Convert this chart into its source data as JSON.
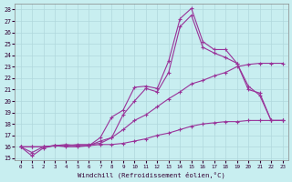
{
  "xlabel": "Windchill (Refroidissement éolien,°C)",
  "bg_color": "#c8eef0",
  "grid_color": "#b0d8dc",
  "line_color": "#993399",
  "xlim": [
    -0.5,
    23.5
  ],
  "ylim": [
    14.8,
    28.5
  ],
  "yticks": [
    15,
    16,
    17,
    18,
    19,
    20,
    21,
    22,
    23,
    24,
    25,
    26,
    27,
    28
  ],
  "xticks": [
    0,
    1,
    2,
    3,
    4,
    5,
    6,
    7,
    8,
    9,
    10,
    11,
    12,
    13,
    14,
    15,
    16,
    17,
    18,
    19,
    20,
    21,
    22,
    23
  ],
  "lines": [
    {
      "x": [
        0,
        1,
        2,
        3,
        4,
        5,
        6,
        7,
        8,
        9,
        10,
        11,
        12,
        13,
        14,
        15,
        16,
        17,
        18,
        19,
        20,
        21,
        22,
        23
      ],
      "y": [
        16.0,
        15.2,
        15.9,
        16.1,
        16.2,
        16.1,
        16.1,
        16.8,
        18.6,
        19.2,
        21.2,
        21.3,
        21.1,
        23.5,
        27.2,
        28.1,
        25.2,
        24.5,
        24.5,
        23.3,
        21.0,
        20.7,
        18.3,
        18.3
      ]
    },
    {
      "x": [
        0,
        1,
        2,
        3,
        4,
        5,
        6,
        7,
        8,
        9,
        10,
        11,
        12,
        13,
        14,
        15,
        16,
        17,
        18,
        19,
        20,
        21,
        22,
        23
      ],
      "y": [
        16.0,
        15.5,
        16.0,
        16.1,
        16.0,
        16.0,
        16.1,
        16.5,
        16.8,
        18.8,
        20.0,
        21.1,
        20.8,
        22.5,
        26.5,
        27.5,
        24.7,
        24.2,
        23.8,
        23.3,
        21.3,
        20.5,
        18.3,
        18.3
      ]
    },
    {
      "x": [
        0,
        1,
        2,
        3,
        4,
        5,
        6,
        7,
        8,
        9,
        10,
        11,
        12,
        13,
        14,
        15,
        16,
        17,
        18,
        19,
        20,
        21,
        22,
        23
      ],
      "y": [
        16.0,
        16.0,
        16.0,
        16.1,
        16.1,
        16.2,
        16.2,
        16.3,
        16.8,
        17.5,
        18.3,
        18.8,
        19.5,
        20.2,
        20.8,
        21.5,
        21.8,
        22.2,
        22.5,
        23.0,
        23.2,
        23.3,
        23.3,
        23.3
      ]
    },
    {
      "x": [
        0,
        1,
        2,
        3,
        4,
        5,
        6,
        7,
        8,
        9,
        10,
        11,
        12,
        13,
        14,
        15,
        16,
        17,
        18,
        19,
        20,
        21,
        22,
        23
      ],
      "y": [
        16.0,
        16.0,
        16.0,
        16.1,
        16.1,
        16.1,
        16.1,
        16.2,
        16.2,
        16.3,
        16.5,
        16.7,
        17.0,
        17.2,
        17.5,
        17.8,
        18.0,
        18.1,
        18.2,
        18.2,
        18.3,
        18.3,
        18.3,
        18.3
      ]
    }
  ]
}
